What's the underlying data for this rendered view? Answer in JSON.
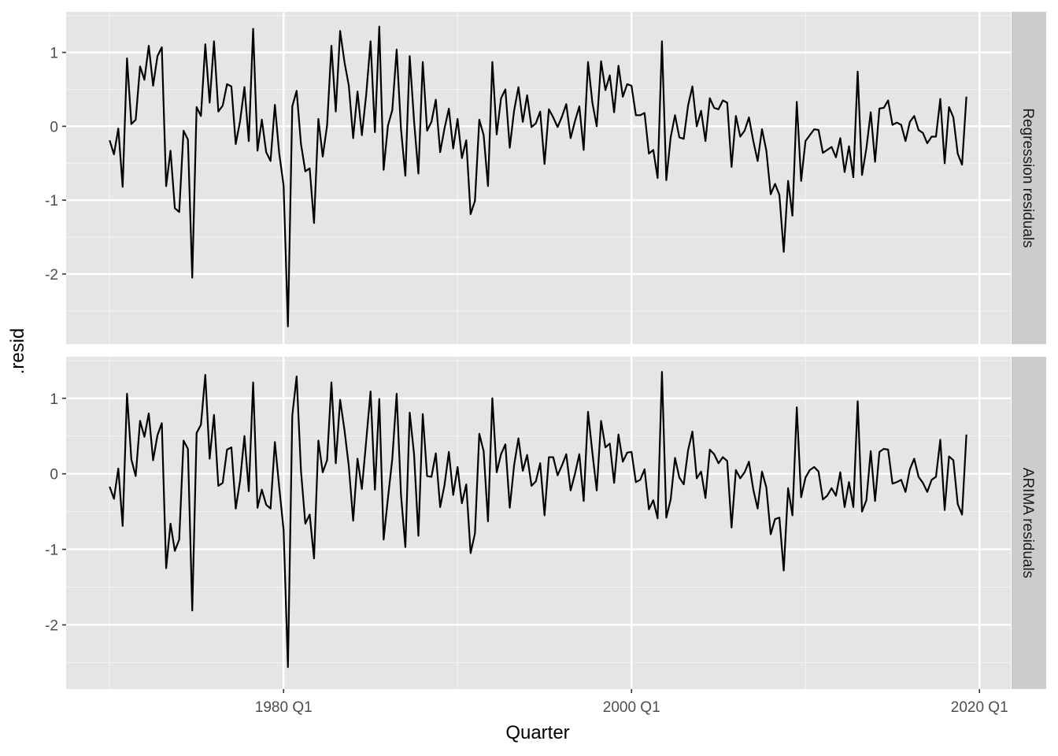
{
  "chart_data": {
    "type": "line",
    "xlabel": "Quarter",
    "ylabel": ".resid",
    "x_start": "1970 Q1",
    "x_tick_labels": [
      "1980 Q1",
      "2000 Q1",
      "2020 Q1"
    ],
    "x_tick_values": [
      1980.0,
      2000.0,
      2020.0
    ],
    "xlim": [
      1967.5,
      2021.8
    ],
    "y_tick_labels": [
      "1",
      "0",
      "-1",
      "-2"
    ],
    "y_tick_values": [
      1,
      0,
      -1,
      -2
    ],
    "grid": true,
    "facets": [
      {
        "label": "Regression residuals",
        "ylim": [
          -2.95,
          1.55
        ],
        "values": [
          -0.19,
          -0.38,
          -0.03,
          -0.82,
          0.92,
          0.03,
          0.09,
          0.81,
          0.63,
          1.09,
          0.55,
          0.95,
          1.07,
          -0.81,
          -0.33,
          -1.11,
          -1.16,
          -0.06,
          -0.18,
          -2.05,
          0.26,
          0.14,
          1.11,
          0.32,
          1.15,
          0.2,
          0.28,
          0.57,
          0.54,
          -0.24,
          0.07,
          0.53,
          -0.2,
          1.32,
          -0.33,
          0.09,
          -0.35,
          -0.47,
          0.29,
          -0.37,
          -0.8,
          -2.71,
          0.27,
          0.48,
          -0.24,
          -0.61,
          -0.57,
          -1.31,
          0.1,
          -0.41,
          0.01,
          1.09,
          0.2,
          1.29,
          0.87,
          0.55,
          -0.16,
          0.47,
          -0.12,
          0.43,
          1.15,
          -0.08,
          1.35,
          -0.59,
          0.01,
          0.22,
          1.04,
          -0.04,
          -0.67,
          0.95,
          0.07,
          -0.64,
          0.87,
          -0.06,
          0.06,
          0.36,
          -0.35,
          -0.03,
          0.24,
          -0.3,
          0.1,
          -0.43,
          -0.19,
          -1.19,
          -1.01,
          0.09,
          -0.12,
          -0.81,
          0.87,
          -0.11,
          0.38,
          0.5,
          -0.29,
          0.21,
          0.53,
          0.06,
          0.42,
          -0.01,
          0.04,
          0.2,
          -0.51,
          0.23,
          0.12,
          -0.01,
          0.13,
          0.3,
          -0.16,
          0.07,
          0.27,
          -0.32,
          0.87,
          0.32,
          0.0,
          0.88,
          0.49,
          0.69,
          0.19,
          0.82,
          0.4,
          0.57,
          0.55,
          0.15,
          0.15,
          0.18,
          -0.37,
          -0.32,
          -0.7,
          1.15,
          -0.73,
          -0.15,
          0.15,
          -0.15,
          -0.17,
          0.28,
          0.54,
          0.0,
          0.21,
          -0.2,
          0.38,
          0.25,
          0.23,
          0.35,
          0.32,
          -0.55,
          0.14,
          -0.14,
          -0.06,
          0.12,
          -0.2,
          -0.47,
          -0.04,
          -0.33,
          -0.92,
          -0.78,
          -0.93,
          -1.7,
          -0.74,
          -1.21,
          0.33,
          -0.74,
          -0.2,
          -0.12,
          -0.04,
          -0.05,
          -0.36,
          -0.32,
          -0.28,
          -0.42,
          -0.16,
          -0.62,
          -0.27,
          -0.69,
          0.74,
          -0.66,
          -0.3,
          0.19,
          -0.48,
          0.24,
          0.25,
          0.35,
          0.02,
          0.05,
          0.02,
          -0.2,
          0.06,
          0.14,
          -0.05,
          -0.09,
          -0.23,
          -0.14,
          -0.14,
          0.37,
          -0.5,
          0.26,
          0.12,
          -0.37,
          -0.52,
          0.4
        ]
      },
      {
        "label": "ARIMA residuals",
        "ylim": [
          -2.85,
          1.55
        ],
        "values": [
          -0.17,
          -0.33,
          0.07,
          -0.69,
          1.06,
          0.19,
          -0.03,
          0.7,
          0.49,
          0.8,
          0.18,
          0.51,
          0.67,
          -1.25,
          -0.66,
          -1.02,
          -0.87,
          0.44,
          0.33,
          -1.81,
          0.54,
          0.65,
          1.31,
          0.2,
          0.78,
          -0.16,
          -0.12,
          0.32,
          0.35,
          -0.46,
          -0.09,
          0.5,
          -0.23,
          1.21,
          -0.45,
          -0.21,
          -0.41,
          -0.46,
          0.42,
          -0.18,
          -0.74,
          -2.56,
          0.77,
          1.29,
          0.04,
          -0.66,
          -0.54,
          -1.12,
          0.44,
          0.02,
          0.18,
          1.21,
          0.14,
          0.98,
          0.58,
          0.1,
          -0.62,
          0.2,
          -0.2,
          0.44,
          1.09,
          -0.21,
          0.99,
          -0.87,
          -0.32,
          0.2,
          1.06,
          -0.28,
          -0.97,
          0.81,
          0.26,
          -0.82,
          0.79,
          -0.03,
          -0.04,
          0.27,
          -0.44,
          -0.15,
          0.29,
          -0.28,
          0.09,
          -0.39,
          -0.14,
          -1.05,
          -0.79,
          0.53,
          0.3,
          -0.63,
          1.0,
          0.02,
          0.26,
          0.39,
          -0.45,
          0.11,
          0.47,
          0.04,
          0.25,
          -0.16,
          -0.1,
          0.14,
          -0.55,
          0.22,
          0.22,
          -0.02,
          0.11,
          0.26,
          -0.22,
          0.0,
          0.26,
          -0.36,
          0.82,
          0.28,
          -0.22,
          0.7,
          0.35,
          0.4,
          -0.12,
          0.52,
          0.16,
          0.28,
          0.29,
          -0.11,
          -0.08,
          0.06,
          -0.47,
          -0.35,
          -0.59,
          1.35,
          -0.58,
          -0.34,
          0.21,
          -0.05,
          -0.14,
          0.31,
          0.56,
          -0.06,
          0.03,
          -0.32,
          0.32,
          0.26,
          0.14,
          0.22,
          0.17,
          -0.71,
          0.05,
          -0.06,
          0.02,
          0.16,
          -0.21,
          -0.46,
          0.03,
          -0.18,
          -0.8,
          -0.6,
          -0.58,
          -1.28,
          -0.19,
          -0.55,
          0.88,
          -0.31,
          -0.05,
          0.05,
          0.09,
          0.03,
          -0.34,
          -0.29,
          -0.19,
          -0.29,
          0.02,
          -0.44,
          -0.11,
          -0.44,
          0.96,
          -0.5,
          -0.35,
          0.3,
          -0.36,
          0.29,
          0.33,
          0.32,
          -0.13,
          -0.11,
          -0.08,
          -0.24,
          0.06,
          0.2,
          -0.04,
          -0.12,
          -0.24,
          -0.08,
          -0.04,
          0.45,
          -0.48,
          0.23,
          0.18,
          -0.4,
          -0.54,
          0.52
        ]
      }
    ]
  },
  "colors": {
    "panel_background": "#e5e5e5",
    "strip_background": "#cccccc",
    "grid_major": "#ffffff",
    "grid_minor": "#f2f2f2",
    "line": "#000000",
    "tick_text": "#4d4d4d",
    "tick_mark": "#333333"
  }
}
